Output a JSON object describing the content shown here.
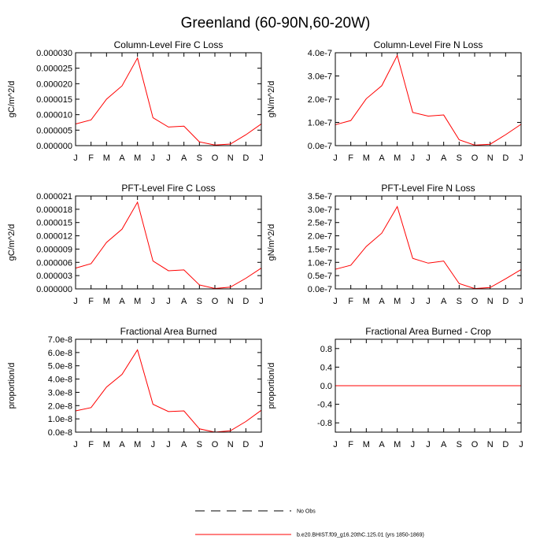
{
  "title": "Greenland (60-90N,60-20W)",
  "chart_data": [
    {
      "type": "line",
      "title": "Column-Level Fire C Loss",
      "ylabel": "gC/m^2/d",
      "categories": [
        "J",
        "F",
        "M",
        "A",
        "M",
        "J",
        "J",
        "A",
        "S",
        "O",
        "N",
        "D",
        "J"
      ],
      "ylim": [
        0,
        3e-05
      ],
      "yticks": [
        "0.000000",
        "0.000005",
        "0.000010",
        "0.000015",
        "0.000020",
        "0.000025",
        "0.000030"
      ],
      "series": [
        {
          "values": [
            7e-06,
            8.3e-06,
            1.5e-05,
            1.93e-05,
            2.83e-05,
            9e-06,
            6e-06,
            6.3e-06,
            1.2e-06,
            2e-07,
            5e-07,
            3.5e-06,
            7e-06
          ],
          "color": "#ff0000"
        }
      ]
    },
    {
      "type": "line",
      "title": "Column-Level Fire N Loss",
      "ylabel": "gN/m^2/d",
      "categories": [
        "J",
        "F",
        "M",
        "A",
        "M",
        "J",
        "J",
        "A",
        "S",
        "O",
        "N",
        "D",
        "J"
      ],
      "ylim": [
        0,
        4e-07
      ],
      "yticks": [
        "0.0e-7",
        "1.0e-7",
        "2.0e-7",
        "3.0e-7",
        "4.0e-7"
      ],
      "series": [
        {
          "values": [
            9e-08,
            1.08e-07,
            2.02e-07,
            2.58e-07,
            3.88e-07,
            1.43e-07,
            1.27e-07,
            1.32e-07,
            2.5e-08,
            2e-09,
            6e-09,
            4.7e-08,
            9.2e-08
          ],
          "color": "#ff0000"
        }
      ]
    },
    {
      "type": "line",
      "title": "PFT-Level Fire C Loss",
      "ylabel": "gC/m^2/d",
      "categories": [
        "J",
        "F",
        "M",
        "A",
        "M",
        "J",
        "J",
        "A",
        "S",
        "O",
        "N",
        "D",
        "J"
      ],
      "ylim": [
        0,
        2.1e-05
      ],
      "yticks": [
        "0.000000",
        "0.000003",
        "0.000006",
        "0.000009",
        "0.000012",
        "0.000015",
        "0.000018",
        "0.000021"
      ],
      "series": [
        {
          "values": [
            4.7e-06,
            5.7e-06,
            1.05e-05,
            1.35e-05,
            1.96e-05,
            6.3e-06,
            4.1e-06,
            4.3e-06,
            9e-07,
            1e-07,
            4e-07,
            2.4e-06,
            4.7e-06
          ],
          "color": "#ff0000"
        }
      ]
    },
    {
      "type": "line",
      "title": "PFT-Level Fire N Loss",
      "ylabel": "gN/m^2/d",
      "categories": [
        "J",
        "F",
        "M",
        "A",
        "M",
        "J",
        "J",
        "A",
        "S",
        "O",
        "N",
        "D",
        "J"
      ],
      "ylim": [
        0,
        3.5e-07
      ],
      "yticks": [
        "0.0e-7",
        "0.5e-7",
        "1.0e-7",
        "1.5e-7",
        "2.0e-7",
        "2.5e-7",
        "3.0e-7",
        "3.5e-7"
      ],
      "series": [
        {
          "values": [
            7.4e-08,
            8.9e-08,
            1.6e-07,
            2.1e-07,
            3.1e-07,
            1.15e-07,
            9.7e-08,
            1.05e-07,
            2e-08,
            1e-09,
            5e-09,
            3.8e-08,
            7.3e-08
          ],
          "color": "#ff0000"
        }
      ]
    },
    {
      "type": "line",
      "title": "Fractional Area Burned",
      "ylabel": "proportion/d",
      "categories": [
        "J",
        "F",
        "M",
        "A",
        "M",
        "J",
        "J",
        "A",
        "S",
        "O",
        "N",
        "D",
        "J"
      ],
      "ylim": [
        0,
        7e-08
      ],
      "yticks": [
        "0.0e-8",
        "1.0e-8",
        "2.0e-8",
        "3.0e-8",
        "4.0e-8",
        "5.0e-8",
        "6.0e-8",
        "7.0e-8"
      ],
      "series": [
        {
          "values": [
            1.6e-08,
            1.85e-08,
            3.4e-08,
            4.35e-08,
            6.2e-08,
            2.1e-08,
            1.55e-08,
            1.6e-08,
            2.5e-09,
            0.0,
            1e-09,
            8e-09,
            1.65e-08
          ],
          "color": "#ff0000"
        }
      ]
    },
    {
      "type": "line",
      "title": "Fractional Area Burned - Crop",
      "ylabel": "proportion/d",
      "categories": [
        "J",
        "F",
        "M",
        "A",
        "M",
        "J",
        "J",
        "A",
        "S",
        "O",
        "N",
        "D",
        "J"
      ],
      "ylim": [
        -1.0,
        1.0
      ],
      "yticks": [
        "-0.8",
        "-0.4",
        "0.0",
        "0.4",
        "0.8"
      ],
      "ytick_values": [
        -0.8,
        -0.4,
        0.0,
        0.4,
        0.8
      ],
      "series": [
        {
          "values": [
            0,
            0,
            0,
            0,
            0,
            0,
            0,
            0,
            0,
            0,
            0,
            0,
            0
          ],
          "color": "#ff0000"
        }
      ]
    }
  ],
  "legend": [
    {
      "label": "No Obs",
      "style": "dashed",
      "color": "#000000"
    },
    {
      "label": "b.e20.BHIST.f09_g16.20thC.125.01 (yrs 1850-1869)",
      "style": "solid",
      "color": "#ff0000"
    }
  ]
}
